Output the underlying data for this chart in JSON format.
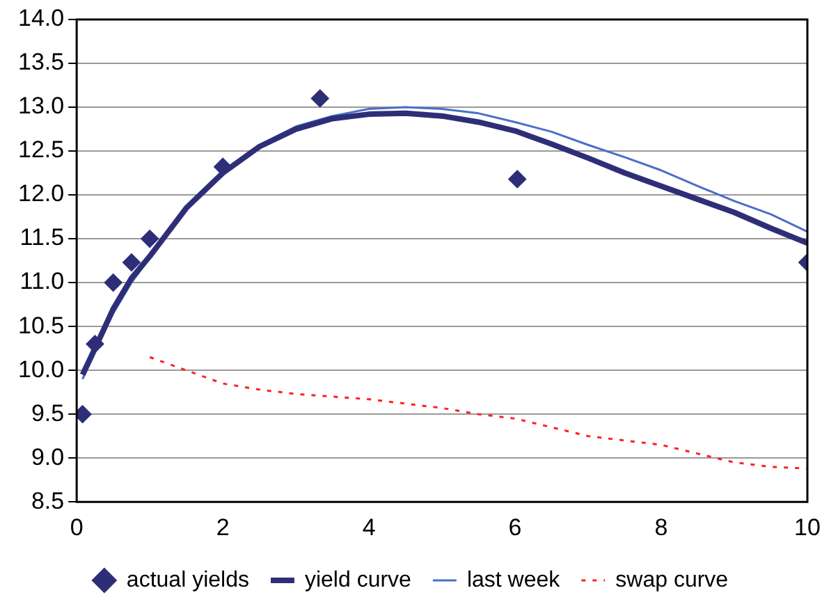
{
  "chart_data": {
    "type": "line",
    "xlim": [
      0,
      10
    ],
    "xticks": [
      0,
      2,
      4,
      6,
      8,
      10
    ],
    "ylim": [
      8.5,
      14
    ],
    "yticks": [
      {
        "value": 8.5,
        "label": "8.5"
      },
      {
        "value": 9,
        "label": "9.0"
      },
      {
        "value": 9.5,
        "label": "9.5"
      },
      {
        "value": 10,
        "label": "10.0"
      },
      {
        "value": 10.5,
        "label": "10.5"
      },
      {
        "value": 11,
        "label": "11.0"
      },
      {
        "value": 11.5,
        "label": "11.5"
      },
      {
        "value": 12,
        "label": "12.0"
      },
      {
        "value": 12.5,
        "label": "12.5"
      },
      {
        "value": 13,
        "label": "13.0"
      },
      {
        "value": 13.5,
        "label": "13.5"
      },
      {
        "value": 14,
        "label": "14.0"
      }
    ],
    "grid": "y",
    "legend": "bottom",
    "series": [
      {
        "name": "actual yields",
        "type": "scatter",
        "marker": "diamond",
        "color": "#2e2e78",
        "x": [
          0.08,
          0.25,
          0.5,
          0.75,
          1,
          2,
          3.33,
          6.03,
          10
        ],
        "values": [
          9.5,
          10.3,
          11.0,
          11.23,
          11.5,
          12.32,
          13.1,
          12.18,
          11.23
        ]
      },
      {
        "name": "yield curve",
        "color": "#2e2e78",
        "line_style": "solid",
        "x": [
          0.08,
          0.25,
          0.5,
          0.75,
          1,
          1.5,
          2,
          2.5,
          3,
          3.5,
          4,
          4.5,
          5,
          5.5,
          6,
          6.5,
          7,
          7.5,
          8,
          8.5,
          9,
          9.5,
          10
        ],
        "values": [
          9.95,
          10.25,
          10.7,
          11.05,
          11.3,
          11.85,
          12.25,
          12.55,
          12.75,
          12.87,
          12.92,
          12.93,
          12.9,
          12.83,
          12.73,
          12.58,
          12.42,
          12.25,
          12.1,
          11.95,
          11.8,
          11.62,
          11.45
        ]
      },
      {
        "name": "last week",
        "color": "#4a6fc8",
        "line_style": "solid",
        "x": [
          0.08,
          0.25,
          0.5,
          0.75,
          1,
          1.5,
          2,
          2.5,
          3,
          3.5,
          4,
          4.5,
          5,
          5.5,
          6,
          6.5,
          7,
          7.5,
          8,
          8.5,
          9,
          9.5,
          10
        ],
        "values": [
          9.9,
          10.2,
          10.65,
          11.0,
          11.28,
          11.85,
          12.25,
          12.57,
          12.78,
          12.9,
          12.98,
          13.0,
          12.98,
          12.93,
          12.83,
          12.72,
          12.57,
          12.43,
          12.28,
          12.1,
          11.93,
          11.78,
          11.58
        ]
      },
      {
        "name": "swap curve",
        "color": "#ff2020",
        "line_style": "dotted",
        "x": [
          1,
          1.5,
          2,
          2.5,
          3,
          3.5,
          4,
          4.5,
          5,
          5.5,
          6,
          6.5,
          7,
          7.5,
          8,
          8.5,
          9,
          9.5,
          10
        ],
        "values": [
          10.15,
          10.0,
          9.85,
          9.78,
          9.73,
          9.7,
          9.67,
          9.62,
          9.57,
          9.5,
          9.45,
          9.35,
          9.25,
          9.2,
          9.15,
          9.05,
          8.95,
          8.9,
          8.88
        ]
      }
    ]
  }
}
